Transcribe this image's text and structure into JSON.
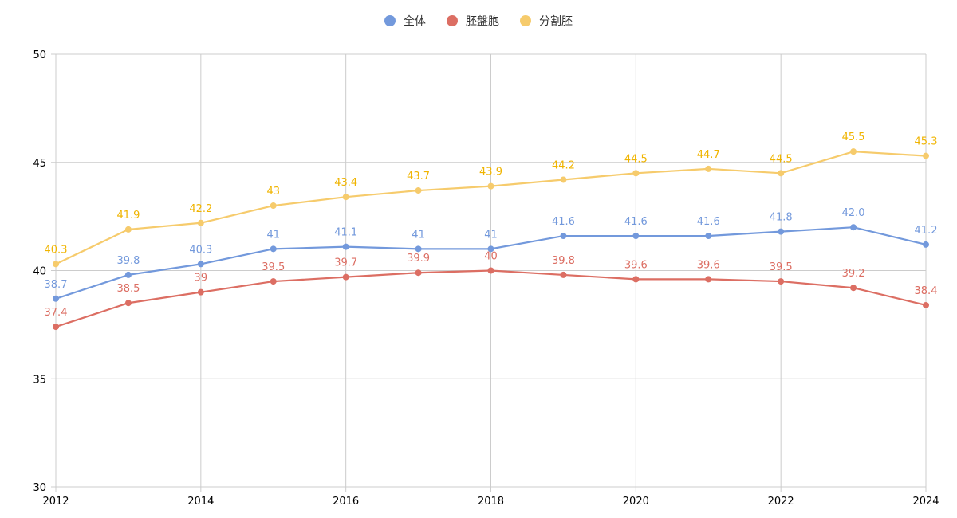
{
  "chart_data": {
    "type": "line",
    "x": [
      2012,
      2013,
      2014,
      2015,
      2016,
      2017,
      2018,
      2019,
      2020,
      2021,
      2022,
      2023,
      2024
    ],
    "xticks": [
      "2012",
      "2014",
      "2016",
      "2018",
      "2020",
      "2022",
      "2024"
    ],
    "ylim": [
      30,
      50
    ],
    "yticks": [
      "30",
      "35",
      "40",
      "45",
      "50"
    ],
    "grid": true,
    "legend_placement": "top",
    "series": [
      {
        "name": "全体",
        "color": "#7399dc",
        "label_color": "#7399dc",
        "values": [
          38.7,
          39.8,
          40.3,
          41,
          41.1,
          41,
          41,
          41.6,
          41.6,
          41.6,
          41.8,
          42.0,
          41.2
        ],
        "labels": [
          "38.7",
          "39.8",
          "40.3",
          "41",
          "41.1",
          "41",
          "41",
          "41.6",
          "41.6",
          "41.6",
          "41.8",
          "42.0",
          "41.2"
        ]
      },
      {
        "name": "胚盤胞",
        "color": "#dc6e63",
        "label_color": "#dc6e63",
        "values": [
          37.4,
          38.5,
          39,
          39.5,
          39.7,
          39.9,
          40,
          39.8,
          39.6,
          39.6,
          39.5,
          39.2,
          38.4
        ],
        "labels": [
          "37.4",
          "38.5",
          "39",
          "39.5",
          "39.7",
          "39.9",
          "40",
          "39.8",
          "39.6",
          "39.6",
          "39.5",
          "39.2",
          "38.4"
        ]
      },
      {
        "name": "分割胚",
        "color": "#f6cb6c",
        "label_color": "#f0b400",
        "values": [
          40.3,
          41.9,
          42.2,
          43,
          43.4,
          43.7,
          43.9,
          44.2,
          44.5,
          44.7,
          44.5,
          45.5,
          45.3
        ],
        "labels": [
          "40.3",
          "41.9",
          "42.2",
          "43",
          "43.4",
          "43.7",
          "43.9",
          "44.2",
          "44.5",
          "44.7",
          "44.5",
          "45.5",
          "45.3"
        ]
      }
    ]
  }
}
